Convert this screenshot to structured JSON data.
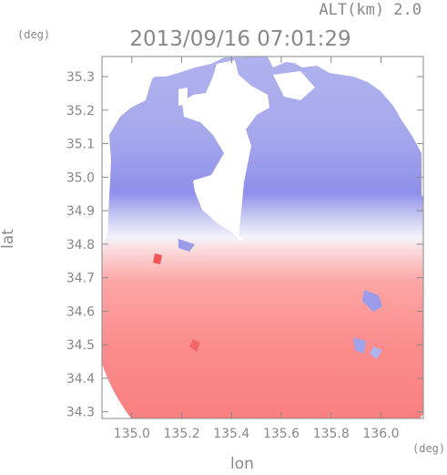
{
  "chart_data": {
    "type": "heatmap",
    "title": "2013/09/16 07:01:29",
    "altitude_label": "ALT(km) 2.0",
    "xlabel": "lon",
    "ylabel": "lat",
    "x_unit": "(deg)",
    "y_unit": "(deg)",
    "xlim": [
      134.88,
      136.17
    ],
    "ylim": [
      34.28,
      35.36
    ],
    "x_ticks": [
      "135.0",
      "135.2",
      "135.4",
      "135.6",
      "135.8",
      "136.0"
    ],
    "y_ticks": [
      "34.3",
      "34.4",
      "34.5",
      "34.6",
      "34.7",
      "34.8",
      "34.9",
      "35.0",
      "35.1",
      "35.2",
      "35.3"
    ],
    "grid": false,
    "radar_center": [
      135.52,
      34.82
    ],
    "colors": {
      "approaching": "#7a7ae8",
      "receding": "#fb7e7e",
      "neutral": "#f3f3fb",
      "no_data": "#ffffff",
      "axis": "#888888"
    }
  }
}
